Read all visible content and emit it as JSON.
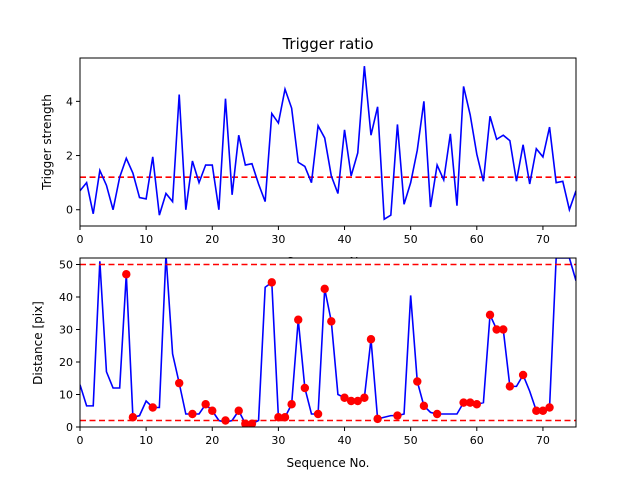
{
  "chart_data": [
    {
      "type": "line",
      "title": "Trigger ratio",
      "xlabel": "Sequence No.",
      "ylabel": "Trigger strength",
      "xlim": [
        0,
        75
      ],
      "ylim": [
        -0.6,
        5.6
      ],
      "xticks": [
        0,
        10,
        20,
        30,
        40,
        50,
        60,
        70
      ],
      "yticks": [
        0,
        2,
        4
      ],
      "threshold": 1.2,
      "grid": false,
      "colors": {
        "line": "#0000ff",
        "threshold": "#ff0000"
      },
      "series": [
        {
          "x": [
            0,
            1,
            2,
            3,
            4,
            5,
            6,
            7,
            8,
            9,
            10,
            11,
            12,
            13,
            14,
            15,
            16,
            17,
            18,
            19,
            20,
            21,
            22,
            23,
            24,
            25,
            26,
            27,
            28,
            29,
            30,
            31,
            32,
            33,
            34,
            35,
            36,
            37,
            38,
            39,
            40,
            41,
            42,
            43,
            44,
            45,
            46,
            47,
            48,
            49,
            50,
            51,
            52,
            53,
            54,
            55,
            56,
            57,
            58,
            59,
            60,
            61,
            62,
            63,
            64,
            65,
            66,
            67,
            68,
            69,
            70,
            71,
            72,
            73,
            74,
            75
          ],
          "values": [
            0.7,
            1.0,
            -0.15,
            1.45,
            0.9,
            0.0,
            1.2,
            1.9,
            1.35,
            0.45,
            0.4,
            1.95,
            -0.2,
            0.6,
            0.3,
            4.25,
            0.0,
            1.8,
            1.0,
            1.65,
            1.65,
            0.0,
            4.1,
            0.55,
            2.75,
            1.65,
            1.7,
            0.95,
            0.3,
            3.55,
            3.2,
            4.45,
            3.75,
            1.75,
            1.6,
            1.0,
            3.1,
            2.65,
            1.25,
            0.6,
            2.95,
            1.25,
            2.1,
            5.3,
            2.75,
            3.8,
            -0.35,
            -0.2,
            3.15,
            0.2,
            1.0,
            2.2,
            4.0,
            0.1,
            1.65,
            1.1,
            2.8,
            0.15,
            4.55,
            3.5,
            2.05,
            1.05,
            3.45,
            2.6,
            2.75,
            2.55,
            1.05,
            2.4,
            0.95,
            2.25,
            1.95,
            3.05,
            1.0,
            1.05,
            0.0,
            0.7
          ]
        }
      ]
    },
    {
      "type": "line",
      "title": "",
      "xlabel": "Sequence No.",
      "ylabel": "Distance [pix]",
      "xlim": [
        0,
        75
      ],
      "ylim": [
        0,
        52
      ],
      "xticks": [
        0,
        10,
        20,
        30,
        40,
        50,
        60,
        70
      ],
      "yticks": [
        0,
        10,
        20,
        30,
        40,
        50
      ],
      "thresholds": [
        50,
        2
      ],
      "grid": false,
      "colors": {
        "line": "#0000ff",
        "threshold": "#ff0000",
        "markers": "#ff0000"
      },
      "series": [
        {
          "x": [
            0,
            1,
            2,
            3,
            4,
            5,
            6,
            7,
            8,
            9,
            10,
            11,
            12,
            13,
            14,
            15,
            16,
            17,
            18,
            19,
            20,
            21,
            22,
            23,
            24,
            25,
            26,
            27,
            28,
            29,
            30,
            31,
            32,
            33,
            34,
            35,
            36,
            37,
            38,
            39,
            40,
            41,
            42,
            43,
            44,
            45,
            46,
            47,
            48,
            49,
            50,
            51,
            52,
            53,
            54,
            55,
            56,
            57,
            58,
            59,
            60,
            61,
            62,
            63,
            64,
            65,
            66,
            67,
            68,
            69,
            70,
            71,
            72,
            73,
            74,
            75
          ],
          "values": [
            13,
            6.5,
            6.5,
            51,
            17,
            12,
            12,
            47,
            3,
            3.5,
            8,
            6,
            6,
            53,
            22.5,
            13.5,
            4,
            4,
            4,
            7,
            5,
            2,
            1.5,
            2,
            5,
            1,
            1,
            2,
            43,
            44.5,
            3,
            3,
            7,
            33,
            12,
            4,
            4,
            42.5,
            32.5,
            10,
            9,
            8,
            8,
            9,
            27,
            2.5,
            3,
            3.5,
            3.5,
            4,
            40.5,
            14,
            6.5,
            4.5,
            4,
            4,
            4,
            4,
            7.5,
            7.5,
            7,
            7.5,
            34.5,
            30,
            30,
            12.5,
            12.5,
            16,
            11,
            5,
            5,
            6,
            52,
            52,
            52,
            45
          ]
        }
      ],
      "markers": {
        "x": [
          7,
          8,
          11,
          15,
          17,
          19,
          20,
          22,
          24,
          25,
          26,
          29,
          30,
          31,
          32,
          33,
          34,
          36,
          37,
          38,
          40,
          41,
          42,
          43,
          44,
          45,
          48,
          51,
          52,
          54,
          58,
          59,
          60,
          62,
          63,
          64,
          65,
          67,
          69,
          70,
          71
        ],
        "values": [
          47,
          3,
          6,
          13.5,
          4,
          7,
          5,
          2,
          5,
          1,
          1,
          44.5,
          3,
          3,
          7,
          33,
          12,
          4,
          42.5,
          32.5,
          9,
          8,
          8,
          9,
          27,
          2.5,
          3.5,
          14,
          6.5,
          4,
          7.5,
          7.5,
          7,
          34.5,
          30,
          30,
          12.5,
          16,
          5,
          5,
          6
        ]
      }
    }
  ]
}
